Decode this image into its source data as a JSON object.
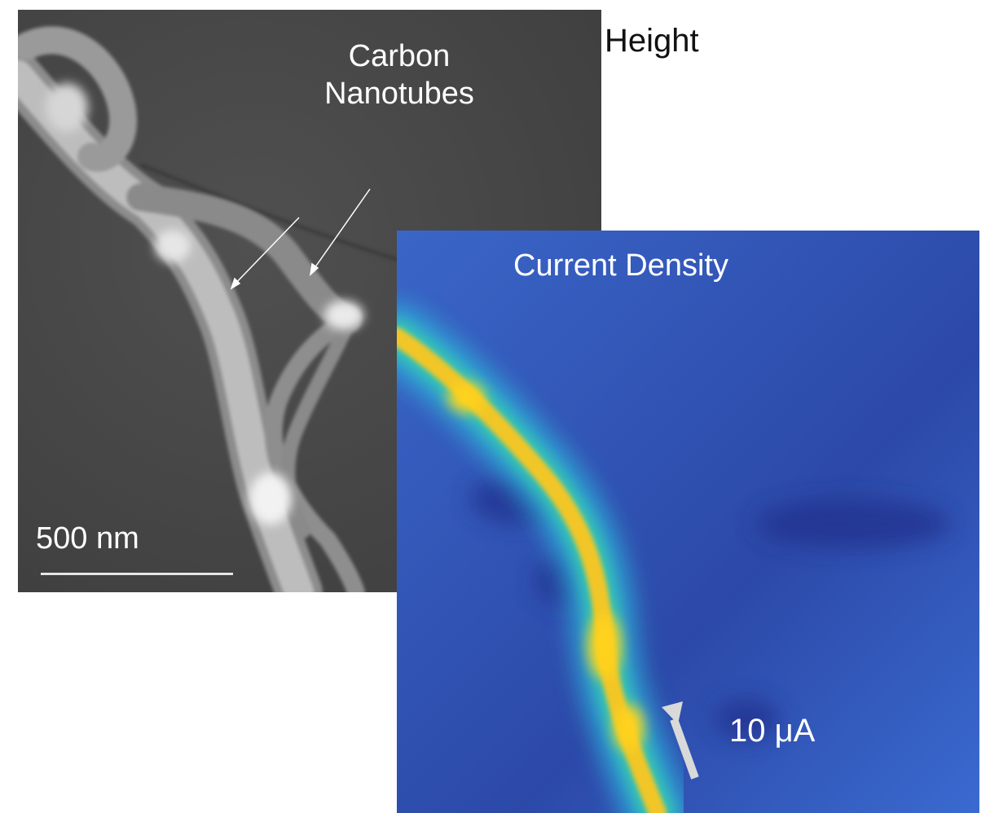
{
  "height_panel": {
    "title": "Height",
    "annotation_line1": "Carbon",
    "annotation_line2": "Nanotubes",
    "scale_bar_text": "500 nm"
  },
  "current_panel": {
    "title": "Current Density",
    "current_text": "10 μA"
  },
  "colors": {
    "height_background": "#4a4a4a",
    "current_background": "#2f57b8",
    "current_peak": "#ffd21a"
  }
}
